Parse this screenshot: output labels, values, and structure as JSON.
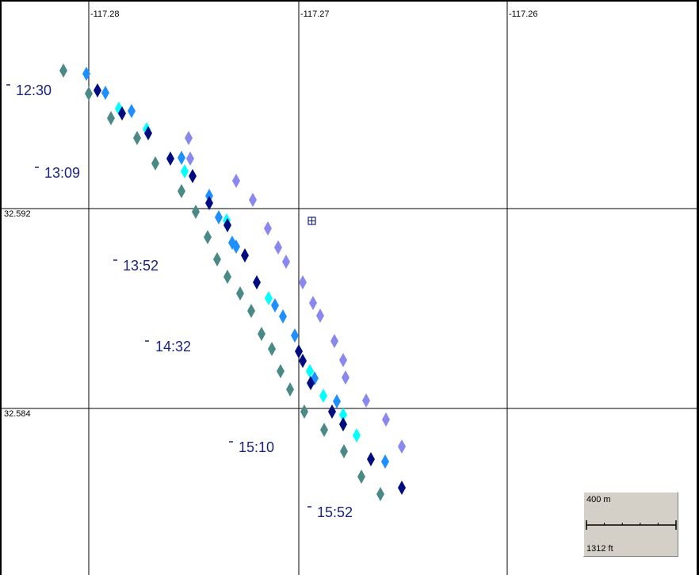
{
  "map": {
    "longitude_labels": [
      "-117.28",
      "-117.27",
      "-117.26"
    ],
    "latitude_labels": [
      "32.592",
      "32.584"
    ],
    "time_labels": [
      "12:30",
      "13:09",
      "13:52",
      "14:32",
      "15:10",
      "15:52"
    ],
    "scale": {
      "metric": "400 m",
      "imperial": "1312 ft"
    },
    "center_marker_icon": "crosshair-box-icon",
    "track_marker_icon": "diamond-icon",
    "track_colors": [
      "#4a8a86",
      "#1e8fff",
      "#000c80",
      "#00ffff",
      "#8888ee"
    ]
  }
}
